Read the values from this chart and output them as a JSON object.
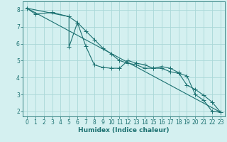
{
  "title": "",
  "xlabel": "Humidex (Indice chaleur)",
  "xlim": [
    -0.5,
    23.5
  ],
  "ylim": [
    1.7,
    8.5
  ],
  "bg_color": "#d4f0f0",
  "grid_color": "#aad8d8",
  "line_color": "#1a7070",
  "line1_x": [
    0,
    1,
    3,
    5,
    5,
    6,
    7,
    8,
    9,
    10,
    11,
    12,
    13,
    14,
    15,
    16,
    17,
    18,
    19,
    20,
    21,
    22,
    23
  ],
  "line1_y": [
    8.1,
    7.75,
    7.85,
    7.6,
    5.8,
    7.25,
    5.85,
    4.75,
    4.6,
    4.55,
    4.55,
    5.0,
    4.85,
    4.75,
    4.55,
    4.65,
    4.55,
    4.3,
    3.55,
    3.3,
    2.95,
    2.55,
    1.95
  ],
  "line2_x": [
    0,
    23
  ],
  "line2_y": [
    8.1,
    1.95
  ],
  "line3_x": [
    0,
    5,
    6,
    7,
    8,
    9,
    10,
    11,
    12,
    13,
    14,
    15,
    16,
    17,
    18,
    19,
    20,
    21,
    22,
    23
  ],
  "line3_y": [
    8.1,
    7.6,
    7.25,
    6.75,
    6.25,
    5.75,
    5.4,
    5.0,
    4.85,
    4.75,
    4.55,
    4.55,
    4.55,
    4.35,
    4.25,
    4.1,
    3.0,
    2.65,
    2.0,
    1.95
  ],
  "xticks": [
    0,
    1,
    2,
    3,
    4,
    5,
    6,
    7,
    8,
    9,
    10,
    11,
    12,
    13,
    14,
    15,
    16,
    17,
    18,
    19,
    20,
    21,
    22,
    23
  ],
  "yticks": [
    2,
    3,
    4,
    5,
    6,
    7,
    8
  ],
  "fontsize_label": 6.5,
  "fontsize_tick": 5.5,
  "marker_size": 2.0,
  "lw": 0.8
}
